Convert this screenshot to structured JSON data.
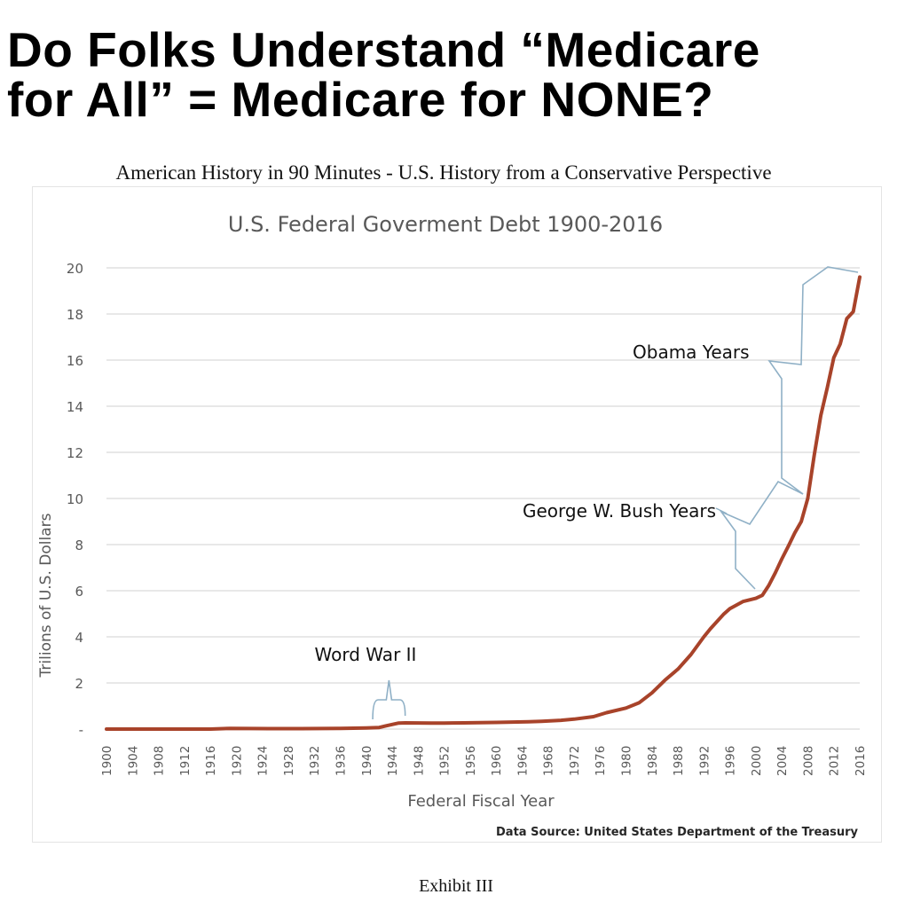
{
  "page": {
    "headline_line1": "Do Folks Understand “Medicare",
    "headline_line2": "for All” = Medicare for NONE?",
    "subtitle": "American History in 90 Minutes - U.S. History from a Conservative Perspective",
    "footer": "Exhibit III"
  },
  "colors": {
    "line": "#a8432a",
    "bracket": "#8fb0c6",
    "grid": "#d9d9d9",
    "axis_text": "#595959"
  },
  "chart_data": {
    "type": "line",
    "title": "U.S. Federal Goverment Debt 1900-2016",
    "xlabel": "Federal Fiscal Year",
    "ylabel": "Trilions of U.S. Dollars",
    "source": "Data Source: United States Department of the Treasury",
    "xlim": [
      1900,
      2016
    ],
    "ylim": [
      0,
      20
    ],
    "x_ticks": [
      1900,
      1904,
      1908,
      1912,
      1916,
      1920,
      1924,
      1928,
      1932,
      1936,
      1940,
      1944,
      1948,
      1952,
      1956,
      1960,
      1964,
      1968,
      1972,
      1976,
      1980,
      1984,
      1988,
      1992,
      1996,
      2000,
      2004,
      2008,
      2012,
      2016
    ],
    "y_ticks": [
      {
        "value": 0,
        "label": "-"
      },
      {
        "value": 2,
        "label": "2"
      },
      {
        "value": 4,
        "label": "4"
      },
      {
        "value": 6,
        "label": "6"
      },
      {
        "value": 8,
        "label": "8"
      },
      {
        "value": 10,
        "label": "10"
      },
      {
        "value": 12,
        "label": "12"
      },
      {
        "value": 14,
        "label": "14"
      },
      {
        "value": 16,
        "label": "16"
      },
      {
        "value": 18,
        "label": "18"
      },
      {
        "value": 20,
        "label": "20"
      }
    ],
    "grid": true,
    "legend": "none",
    "series": [
      {
        "x": [
          1900,
          1910,
          1916,
          1917,
          1919,
          1925,
          1930,
          1936,
          1940,
          1942,
          1943,
          1944,
          1945,
          1946,
          1950,
          1952,
          1955,
          1960,
          1965,
          1967,
          1970,
          1972,
          1975,
          1977,
          1980,
          1982,
          1984,
          1986,
          1988,
          1990,
          1992,
          1993,
          1995,
          1996,
          1998,
          2000,
          2001,
          2002,
          2003,
          2004,
          2005,
          2006,
          2007,
          2008,
          2009,
          2010,
          2011,
          2012,
          2013,
          2014,
          2015,
          2016
        ],
        "y": [
          0.0,
          0.0,
          0.0,
          0.01,
          0.03,
          0.02,
          0.02,
          0.03,
          0.05,
          0.07,
          0.14,
          0.2,
          0.26,
          0.27,
          0.26,
          0.26,
          0.27,
          0.29,
          0.32,
          0.34,
          0.38,
          0.43,
          0.54,
          0.71,
          0.91,
          1.14,
          1.57,
          2.12,
          2.6,
          3.23,
          4.0,
          4.35,
          4.97,
          5.22,
          5.53,
          5.67,
          5.8,
          6.23,
          6.78,
          7.38,
          7.93,
          8.51,
          9.0,
          10.0,
          11.9,
          13.6,
          14.8,
          16.1,
          16.7,
          17.8,
          18.1,
          19.6
        ]
      }
    ],
    "annotations": [
      {
        "label": "Word War II",
        "from": 1941,
        "to": 1946
      },
      {
        "label": "George W. Bush Years",
        "from": 2001,
        "to": 2009
      },
      {
        "label": "Obama Years",
        "from": 2009,
        "to": 2017
      }
    ]
  }
}
